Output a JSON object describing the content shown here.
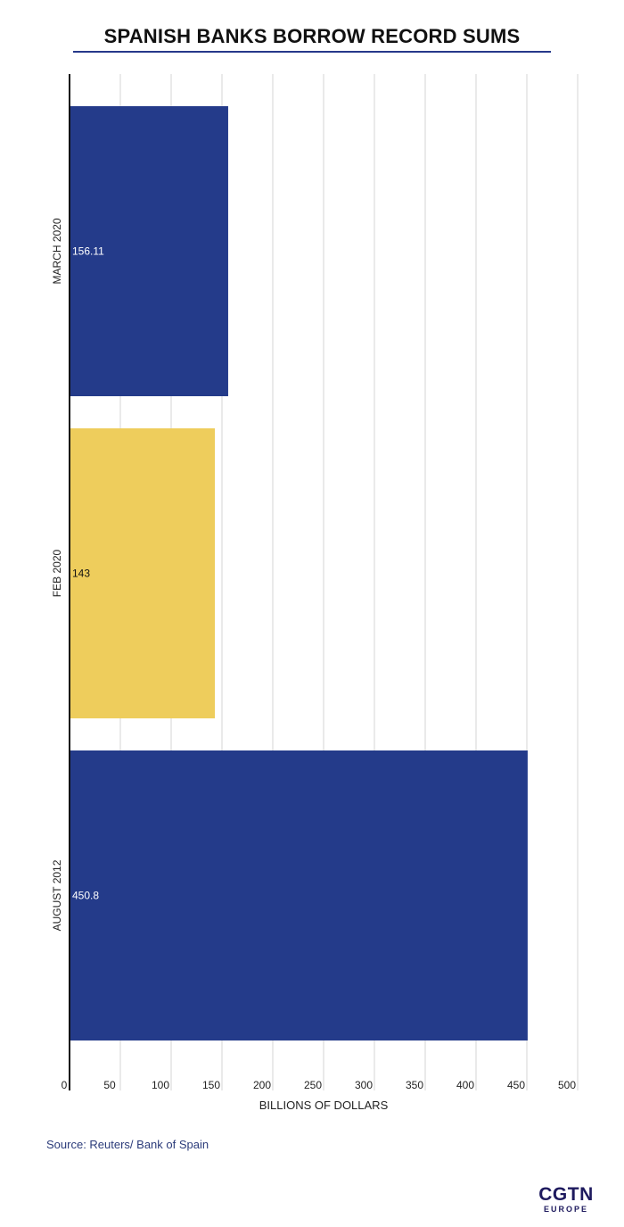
{
  "chart_data": {
    "type": "bar",
    "orientation": "horizontal",
    "title": "SPANISH BANKS BORROW RECORD SUMS",
    "xlabel": "BILLIONS OF DOLLARS",
    "ylabel": "",
    "xlim": [
      0,
      500
    ],
    "xticks": [
      0,
      50,
      100,
      150,
      200,
      250,
      300,
      350,
      400,
      450,
      500
    ],
    "grid": true,
    "categories": [
      "MARCH 2020",
      "FEB 2020",
      "AUGUST 2012"
    ],
    "values": [
      156.11,
      143,
      450.8
    ],
    "value_labels": [
      "156.11",
      "143",
      "450.8"
    ],
    "colors": [
      "#243b8a",
      "#eecd5c",
      "#243b8a"
    ],
    "label_colors": [
      "#ffffff",
      "#111111",
      "#ffffff"
    ]
  },
  "source": "Source: Reuters/ Bank of Spain",
  "logo": {
    "main": "CGTN",
    "sub": "EUROPE"
  }
}
